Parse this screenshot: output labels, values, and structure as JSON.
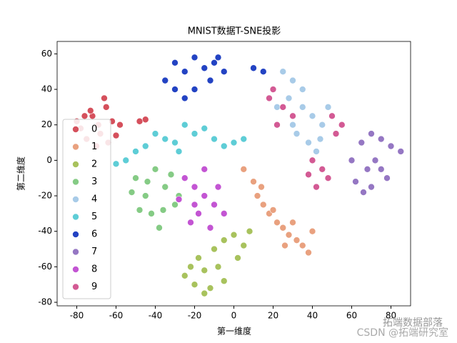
{
  "chart_data": {
    "type": "scatter",
    "title": "MNIST数据T-SNE投影",
    "x_label": "第一维度",
    "y_label": "第二维度",
    "xlim": [
      -90,
      90
    ],
    "ylim": [
      -82,
      67
    ],
    "xticks": [
      -80,
      -60,
      -40,
      -20,
      0,
      20,
      40,
      60,
      80
    ],
    "yticks": [
      -80,
      -60,
      -40,
      -20,
      0,
      20,
      40,
      60
    ],
    "legend_loc": "lower left",
    "watermark": [
      "拓端数据部落",
      "CSDN @拓端研究室"
    ],
    "series": [
      {
        "name": "0",
        "color": "#d5505c",
        "x": [
          -78,
          -72,
          -65,
          -68,
          -75,
          -62,
          -70,
          -80,
          -66,
          -60,
          -73,
          -58,
          -64,
          -76,
          -69,
          -45,
          -48
        ],
        "y": [
          18,
          25,
          30,
          15,
          12,
          22,
          8,
          22,
          35,
          14,
          28,
          20,
          10,
          25,
          20,
          23,
          22
        ]
      },
      {
        "name": "1",
        "color": "#e9a17f",
        "x": [
          5,
          10,
          12,
          15,
          18,
          22,
          25,
          28,
          32,
          35,
          38,
          30,
          20,
          40,
          14,
          26
        ],
        "y": [
          -5,
          -12,
          -20,
          -25,
          -30,
          -35,
          -38,
          -42,
          -45,
          -48,
          -52,
          -35,
          -28,
          -40,
          -15,
          -48
        ]
      },
      {
        "name": "2",
        "color": "#a8c25d",
        "x": [
          -25,
          -20,
          -15,
          -12,
          -18,
          -10,
          -5,
          0,
          5,
          -8,
          2,
          -22,
          -15,
          8,
          -5
        ],
        "y": [
          -65,
          -70,
          -62,
          -72,
          -55,
          -50,
          -45,
          -42,
          -48,
          -60,
          -55,
          -60,
          -75,
          -40,
          -68
        ]
      },
      {
        "name": "3",
        "color": "#85cb85",
        "x": [
          -50,
          -45,
          -40,
          -35,
          -30,
          -42,
          -38,
          -48,
          -32,
          -28,
          -52,
          -36,
          -44
        ],
        "y": [
          -10,
          -20,
          -5,
          -15,
          -25,
          -30,
          -38,
          -28,
          -8,
          -20,
          -18,
          -28,
          -12
        ]
      },
      {
        "name": "4",
        "color": "#a8cbe8",
        "x": [
          25,
          30,
          28,
          35,
          40,
          45,
          38,
          42,
          32,
          22,
          48,
          35,
          30,
          44
        ],
        "y": [
          50,
          45,
          35,
          30,
          25,
          20,
          10,
          5,
          15,
          30,
          30,
          40,
          20,
          12
        ]
      },
      {
        "name": "5",
        "color": "#5ecdd6",
        "x": [
          -55,
          -50,
          -45,
          -40,
          -35,
          -30,
          -25,
          -20,
          -15,
          -10,
          -5,
          0,
          5,
          -60,
          -28
        ],
        "y": [
          0,
          5,
          8,
          15,
          12,
          10,
          20,
          15,
          18,
          12,
          8,
          10,
          12,
          -2,
          5
        ]
      },
      {
        "name": "6",
        "color": "#2343c3",
        "x": [
          -35,
          -30,
          -25,
          -20,
          -15,
          -10,
          -5,
          -30,
          -20,
          -25,
          -12,
          -8,
          10,
          15
        ],
        "y": [
          45,
          55,
          50,
          58,
          52,
          55,
          50,
          40,
          40,
          35,
          45,
          58,
          52,
          50
        ]
      },
      {
        "name": "7",
        "color": "#9577c3",
        "x": [
          65,
          70,
          75,
          80,
          85,
          72,
          68,
          62,
          66,
          75,
          78,
          60,
          70
        ],
        "y": [
          10,
          15,
          12,
          8,
          5,
          0,
          -5,
          -12,
          -18,
          -5,
          -10,
          0,
          -15
        ]
      },
      {
        "name": "8",
        "color": "#c355d3",
        "x": [
          -25,
          -20,
          -15,
          -10,
          -18,
          -22,
          -12,
          -28,
          -8,
          -15,
          -20,
          -5
        ],
        "y": [
          -10,
          -15,
          -20,
          -25,
          -30,
          -35,
          -38,
          -22,
          -15,
          -5,
          -25,
          -30
        ]
      },
      {
        "name": "9",
        "color": "#d35a94",
        "x": [
          20,
          25,
          22,
          30,
          50,
          55,
          45,
          40,
          48,
          42,
          18,
          52,
          38
        ],
        "y": [
          40,
          30,
          20,
          25,
          25,
          20,
          -5,
          0,
          -10,
          -15,
          35,
          15,
          -8
        ]
      }
    ]
  }
}
